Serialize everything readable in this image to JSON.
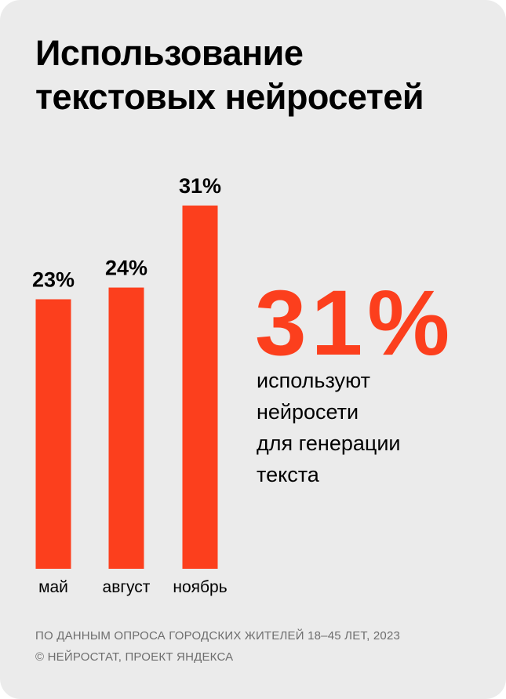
{
  "title_lines": [
    "Использование",
    "текстовых нейросетей"
  ],
  "chart_data": {
    "type": "bar",
    "categories": [
      "май",
      "август",
      "ноябрь"
    ],
    "values": [
      23,
      24,
      31
    ],
    "value_labels": [
      "23%",
      "24%",
      "31%"
    ],
    "unit": "%",
    "ylim": [
      0,
      31
    ],
    "grid": false,
    "bar_color": "#fc3f1d"
  },
  "highlight": {
    "value": "31%",
    "caption_lines": [
      "используют",
      "нейросети",
      "для генерации",
      "текста"
    ]
  },
  "footer_lines": [
    "ПО ДАННЫМ ОПРОСА ГОРОДСКИХ ЖИТЕЛЕЙ 18–45 ЛЕТ, 2023",
    "© НЕЙРОСТАТ, ПРОЕКТ ЯНДЕКСА"
  ],
  "colors": {
    "accent": "#fc3f1d",
    "background": "#ebebeb",
    "text": "#000000",
    "footer_text": "#6e6e6e"
  }
}
